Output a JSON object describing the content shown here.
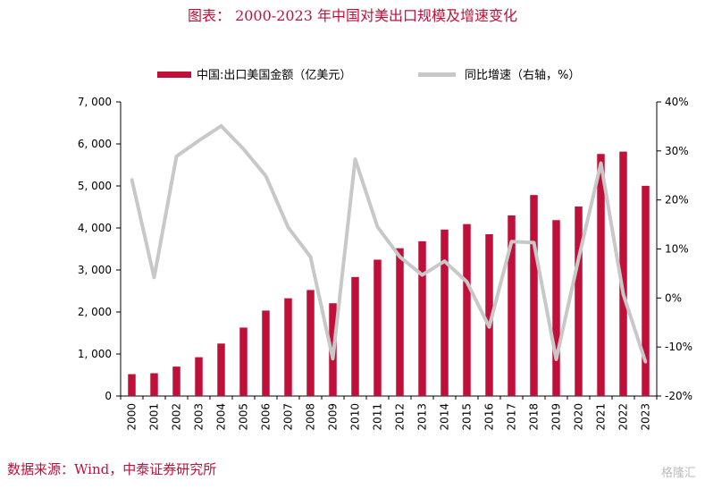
{
  "title": "图表： 2000-2023 年中国对美出口规模及增速变化",
  "source": "数据来源：Wind，中泰证券研究所",
  "watermark": "格隆汇",
  "colors": {
    "bar": "#c0103a",
    "line": "#c8c8c8",
    "axis": "#000000"
  },
  "chart_data": {
    "type": "bar",
    "categories": [
      "2000",
      "2001",
      "2002",
      "2003",
      "2004",
      "2005",
      "2006",
      "2007",
      "2008",
      "2009",
      "2010",
      "2011",
      "2012",
      "2013",
      "2014",
      "2015",
      "2016",
      "2017",
      "2018",
      "2019",
      "2020",
      "2021",
      "2022",
      "2023"
    ],
    "series": [
      {
        "name": "中国:出口美国金额（亿美元）",
        "type": "bar",
        "axis": "left",
        "values": [
          521,
          543,
          700,
          924,
          1249,
          1629,
          2034,
          2327,
          2523,
          2208,
          2833,
          3245,
          3518,
          3684,
          3961,
          4092,
          3851,
          4298,
          4784,
          4186,
          4510,
          5761,
          5817,
          5003
        ]
      },
      {
        "name": "同比增速（右轴，%）",
        "type": "line",
        "axis": "right",
        "values": [
          24.2,
          4.2,
          28.9,
          32.1,
          35.1,
          30.4,
          24.9,
          14.4,
          8.4,
          -12.4,
          28.3,
          14.5,
          8.4,
          4.7,
          7.5,
          3.3,
          -5.9,
          11.5,
          11.3,
          -12.5,
          8.0,
          27.5,
          0.8,
          -13.1
        ]
      }
    ],
    "y_left": {
      "min": 0,
      "max": 7000,
      "ticks": [
        "0",
        "1, 000",
        "2, 000",
        "3, 000",
        "4, 000",
        "5, 000",
        "6, 000",
        "7, 000"
      ]
    },
    "y_right": {
      "min": -20,
      "max": 40,
      "ticks": [
        "-20%",
        "-10%",
        "0%",
        "10%",
        "20%",
        "30%",
        "40%"
      ]
    },
    "legend_position": "top-center",
    "grid": false
  }
}
